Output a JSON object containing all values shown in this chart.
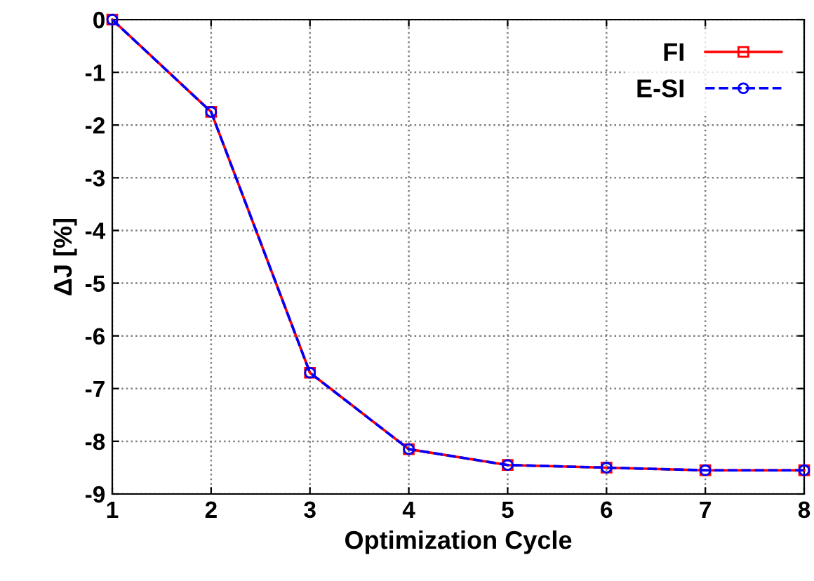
{
  "chart_data": {
    "type": "line",
    "xlabel": "Optimization Cycle",
    "ylabel": "ΔJ [%]",
    "x": [
      1,
      2,
      3,
      4,
      5,
      6,
      7,
      8
    ],
    "series": [
      {
        "name": "FI",
        "color": "#ff0000",
        "marker": "square",
        "line_style": "solid",
        "values": [
          0,
          -1.75,
          -6.7,
          -8.15,
          -8.45,
          -8.5,
          -8.55,
          -8.55
        ]
      },
      {
        "name": "E-SI",
        "color": "#0000ff",
        "marker": "circle",
        "line_style": "dashed",
        "values": [
          0,
          -1.75,
          -6.7,
          -8.15,
          -8.45,
          -8.5,
          -8.55,
          -8.55
        ]
      }
    ],
    "xlim": [
      1,
      8
    ],
    "xticks": [
      1,
      2,
      3,
      4,
      5,
      6,
      7,
      8
    ],
    "ylim": [
      -9,
      0
    ],
    "yticks": [
      -9,
      -8,
      -7,
      -6,
      -5,
      -4,
      -3,
      -2,
      -1,
      0
    ],
    "grid": true,
    "legend": "top right"
  }
}
